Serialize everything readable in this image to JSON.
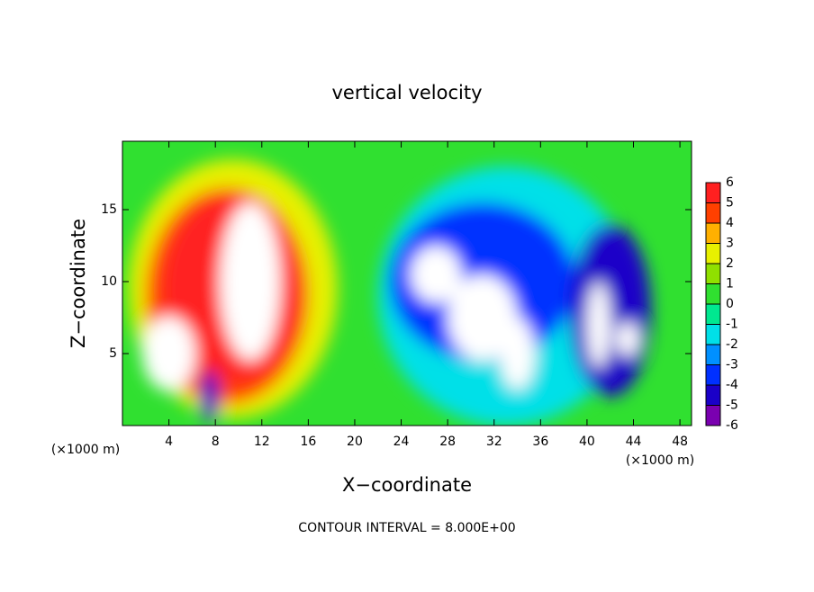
{
  "chart_data": {
    "type": "field",
    "title": "vertical velocity",
    "x_label": "X−coordinate",
    "y_label": "Z−coordinate",
    "x_unit": "(×1000 m)",
    "footer": "CONTOUR INTERVAL = 8.000E+00",
    "xlim": [
      0,
      49
    ],
    "xticks": [
      4,
      8,
      12,
      16,
      20,
      24,
      28,
      32,
      36,
      40,
      44,
      48
    ],
    "ylim": [
      0,
      19.75
    ],
    "yticks": [
      5,
      10,
      15
    ],
    "colorbar": {
      "lim": [
        -6,
        6
      ],
      "ticks": [
        -6,
        -5,
        -4,
        -3,
        -2,
        -1,
        0,
        1,
        2,
        3,
        4,
        5,
        6
      ],
      "colors": [
        "#7a00b0",
        "#1a00c8",
        "#0030ff",
        "#0090ff",
        "#00e0e8",
        "#00e890",
        "#30e030",
        "#90e000",
        "#e8f000",
        "#ffb000",
        "#ff4000",
        "#ff2020"
      ],
      "over_color": "#ffffff"
    },
    "blobs": [
      {
        "x": 9.5,
        "z": 9.5,
        "value": 2,
        "rx": 9,
        "rz": 9
      },
      {
        "x": 9,
        "z": 9,
        "value": 4,
        "rx": 7,
        "rz": 7.5
      },
      {
        "x": 9.5,
        "z": 9.5,
        "value": 5,
        "rx": 6,
        "rz": 6.5
      },
      {
        "x": 11,
        "z": 10,
        "value": 8,
        "rx": 2.6,
        "rz": 5.5
      },
      {
        "x": 4,
        "z": 5,
        "value": 8,
        "rx": 2.3,
        "rz": 2.6
      },
      {
        "x": 7.5,
        "z": 2,
        "value": -5,
        "rx": 0.8,
        "rz": 1.8
      },
      {
        "x": 33,
        "z": 9,
        "value": -2,
        "rx": 11,
        "rz": 9
      },
      {
        "x": 31,
        "z": 10,
        "value": -4,
        "rx": 8,
        "rz": 5.5
      },
      {
        "x": 42,
        "z": 8,
        "value": -5,
        "rx": 3.5,
        "rz": 6
      },
      {
        "x": 27,
        "z": 10.5,
        "value": -8,
        "rx": 2.2,
        "rz": 2
      },
      {
        "x": 31,
        "z": 7.5,
        "value": -8,
        "rx": 3,
        "rz": 3
      },
      {
        "x": 34,
        "z": 5,
        "value": -8,
        "rx": 1.5,
        "rz": 2.5
      },
      {
        "x": 41,
        "z": 7,
        "value": -8,
        "rx": 1,
        "rz": 3
      },
      {
        "x": 43.5,
        "z": 6,
        "value": -7,
        "rx": 1,
        "rz": 1.2
      }
    ]
  }
}
